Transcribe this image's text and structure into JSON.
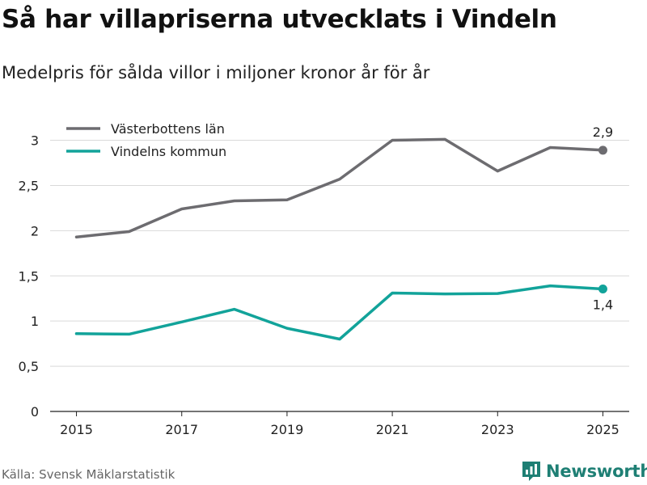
{
  "page": {
    "title": "Så har villapriserna utvecklats i Vindeln",
    "subtitle": "Medelpris för sålda villor i miljoner kronor år för år",
    "source": "Källa: Svensk Mäklarstatistik",
    "brand": "Newsworthy"
  },
  "chart_data": {
    "type": "line",
    "title": "Så har villapriserna utvecklats i Vindeln",
    "subtitle": "Medelpris för sålda villor i miljoner kronor år för år",
    "xlabel": "",
    "ylabel": "",
    "x": [
      2015,
      2016,
      2017,
      2018,
      2019,
      2020,
      2021,
      2022,
      2023,
      2024,
      2025
    ],
    "xlim": [
      2014.5,
      2025.5
    ],
    "ylim": [
      0,
      3.3
    ],
    "xticks": [
      2015,
      2017,
      2019,
      2021,
      2023,
      2025
    ],
    "yticks": [
      0,
      0.5,
      1,
      1.5,
      2,
      2.5,
      3
    ],
    "ytick_labels": [
      "0",
      "0,5",
      "1",
      "1,5",
      "2",
      "2,5",
      "3"
    ],
    "grid": true,
    "legend": "top-left",
    "series": [
      {
        "name": "Västerbottens län",
        "color": "#6d6c70",
        "values": [
          1.93,
          1.99,
          2.24,
          2.33,
          2.34,
          2.57,
          3.0,
          3.01,
          2.66,
          2.92,
          2.89
        ],
        "end_label": "2,9",
        "end_label_position": "above"
      },
      {
        "name": "Vindelns kommun",
        "color": "#12a39a",
        "values": [
          0.86,
          0.855,
          0.99,
          1.13,
          0.92,
          0.8,
          1.31,
          1.3,
          1.305,
          1.39,
          1.355
        ],
        "end_label": "1,4",
        "end_label_position": "below"
      }
    ]
  }
}
